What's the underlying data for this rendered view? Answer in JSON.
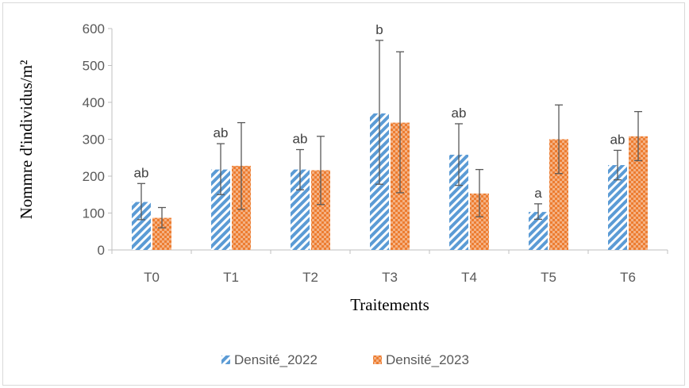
{
  "chart_data": {
    "type": "bar",
    "title": "",
    "xlabel": "Traitements",
    "ylabel": "Nommre d'individus/m²",
    "categories": [
      "T0",
      "T1",
      "T2",
      "T3",
      "T4",
      "T5",
      "T6"
    ],
    "ylim": [
      0,
      600
    ],
    "yticks": [
      0,
      100,
      200,
      300,
      400,
      500,
      600
    ],
    "grid": false,
    "legend_position": "bottom",
    "series": [
      {
        "name": "Densité_2022",
        "pattern": "diagonal-stripes",
        "color": "#5b9bd5",
        "values": [
          130,
          218,
          218,
          370,
          258,
          103,
          230
        ],
        "error_low": [
          82,
          150,
          163,
          178,
          175,
          83,
          190
        ],
        "error_high": [
          180,
          288,
          272,
          568,
          342,
          125,
          270
        ]
      },
      {
        "name": "Densité_2023",
        "pattern": "checker",
        "color": "#ed7d31",
        "values": [
          87,
          228,
          216,
          345,
          153,
          300,
          308
        ],
        "error_low": [
          60,
          110,
          123,
          155,
          90,
          207,
          242
        ],
        "error_high": [
          115,
          345,
          308,
          537,
          218,
          393,
          375
        ]
      }
    ],
    "annotations": [
      "ab",
      "ab",
      "ab",
      "b",
      "ab",
      "a",
      "ab"
    ]
  }
}
